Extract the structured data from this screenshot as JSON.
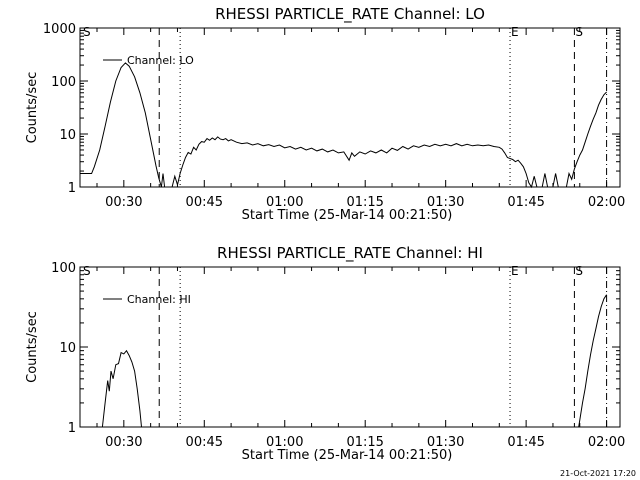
{
  "chart_data": [
    {
      "type": "line",
      "title": "RHESSI PARTICLE_RATE Channel: LO",
      "xlabel": "Start Time (25-Mar-14 00:21:50)",
      "ylabel": "Counts/sec",
      "yscale": "log",
      "ylim": [
        1,
        1000
      ],
      "xlim_minutes": [
        21.83,
        122.5
      ],
      "x_ticks": [
        {
          "t": 30,
          "label": "00:30"
        },
        {
          "t": 45,
          "label": "00:45"
        },
        {
          "t": 60,
          "label": "01:00"
        },
        {
          "t": 75,
          "label": "01:15"
        },
        {
          "t": 90,
          "label": "01:30"
        },
        {
          "t": 105,
          "label": "01:45"
        },
        {
          "t": 120,
          "label": "02:00"
        }
      ],
      "y_ticks": [
        {
          "v": 1,
          "label": "1"
        },
        {
          "v": 10,
          "label": "10"
        },
        {
          "v": 100,
          "label": "100"
        },
        {
          "v": 1000,
          "label": "1000"
        }
      ],
      "legend": {
        "label": "Channel: LO",
        "placement": "top-left"
      },
      "markers": [
        {
          "t": 22.2,
          "label": "S",
          "style": "none"
        },
        {
          "t": 36.6,
          "label": "",
          "style": "dashed"
        },
        {
          "t": 40.5,
          "label": "",
          "style": "dotted"
        },
        {
          "t": 102.0,
          "label": "E",
          "style": "dotted"
        },
        {
          "t": 114.0,
          "label": "S",
          "style": "dashed"
        },
        {
          "t": 120.0,
          "label": "",
          "style": "dashdot"
        }
      ],
      "series": [
        {
          "name": "Channel: LO",
          "points": [
            [
              21.8,
              1.8
            ],
            [
              24.0,
              1.8
            ],
            [
              24.5,
              2.4
            ],
            [
              25.5,
              5.0
            ],
            [
              26.5,
              14
            ],
            [
              27.5,
              40
            ],
            [
              28.5,
              100
            ],
            [
              29.5,
              180
            ],
            [
              30.3,
              220
            ],
            [
              31.0,
              190
            ],
            [
              32.0,
              120
            ],
            [
              33.0,
              60
            ],
            [
              34.0,
              25
            ],
            [
              35.0,
              8
            ],
            [
              36.0,
              2.5
            ],
            [
              36.5,
              1.5
            ],
            [
              37.0,
              1.0
            ],
            [
              37.3,
              1.8
            ],
            [
              37.6,
              1.0
            ],
            [
              38.0,
              1.0
            ],
            [
              39.0,
              1.0
            ],
            [
              39.5,
              1.6
            ],
            [
              40.0,
              1.1
            ],
            [
              40.5,
              1.8
            ],
            [
              41.0,
              2.6
            ],
            [
              41.5,
              3.6
            ],
            [
              42.0,
              4.5
            ],
            [
              42.5,
              4.2
            ],
            [
              43.0,
              5.6
            ],
            [
              43.5,
              5.0
            ],
            [
              44.0,
              6.4
            ],
            [
              44.5,
              7.2
            ],
            [
              45.0,
              7.0
            ],
            [
              45.5,
              8.2
            ],
            [
              46.0,
              7.6
            ],
            [
              46.5,
              8.4
            ],
            [
              47.0,
              7.8
            ],
            [
              47.5,
              8.8
            ],
            [
              48.0,
              8.0
            ],
            [
              48.5,
              7.8
            ],
            [
              49.0,
              8.2
            ],
            [
              49.5,
              7.4
            ],
            [
              50.0,
              7.8
            ],
            [
              51.0,
              7.0
            ],
            [
              52.0,
              6.6
            ],
            [
              53.0,
              6.8
            ],
            [
              54.0,
              6.2
            ],
            [
              55.0,
              6.6
            ],
            [
              56.0,
              6.0
            ],
            [
              57.0,
              6.3
            ],
            [
              58.0,
              5.8
            ],
            [
              59.0,
              6.2
            ],
            [
              60.0,
              5.5
            ],
            [
              61.0,
              5.8
            ],
            [
              62.0,
              5.2
            ],
            [
              63.0,
              5.6
            ],
            [
              64.0,
              5.0
            ],
            [
              65.0,
              5.4
            ],
            [
              66.0,
              4.8
            ],
            [
              67.0,
              5.2
            ],
            [
              68.0,
              4.6
            ],
            [
              69.0,
              5.0
            ],
            [
              70.0,
              4.4
            ],
            [
              71.0,
              4.6
            ],
            [
              72.0,
              3.2
            ],
            [
              72.5,
              4.4
            ],
            [
              73.0,
              3.8
            ],
            [
              74.0,
              4.6
            ],
            [
              75.0,
              4.2
            ],
            [
              76.0,
              4.8
            ],
            [
              77.0,
              4.4
            ],
            [
              78.0,
              5.0
            ],
            [
              79.0,
              4.4
            ],
            [
              80.0,
              5.4
            ],
            [
              81.0,
              4.9
            ],
            [
              82.0,
              5.8
            ],
            [
              83.0,
              5.2
            ],
            [
              84.0,
              6.0
            ],
            [
              85.0,
              5.6
            ],
            [
              86.0,
              6.2
            ],
            [
              87.0,
              5.8
            ],
            [
              88.0,
              6.4
            ],
            [
              89.0,
              6.0
            ],
            [
              90.0,
              6.4
            ],
            [
              91.0,
              6.0
            ],
            [
              92.0,
              6.6
            ],
            [
              93.0,
              6.0
            ],
            [
              94.0,
              6.4
            ],
            [
              95.0,
              6.0
            ],
            [
              96.0,
              6.2
            ],
            [
              97.0,
              6.0
            ],
            [
              98.0,
              6.2
            ],
            [
              99.0,
              5.8
            ],
            [
              100.0,
              5.6
            ],
            [
              100.5,
              5.2
            ],
            [
              101.0,
              4.4
            ],
            [
              101.5,
              3.6
            ],
            [
              102.5,
              3.3
            ],
            [
              103.0,
              3.0
            ],
            [
              103.5,
              3.2
            ],
            [
              104.0,
              2.8
            ],
            [
              104.5,
              2.4
            ],
            [
              105.0,
              1.8
            ],
            [
              105.5,
              1.2
            ],
            [
              106.0,
              1.0
            ],
            [
              106.5,
              1.6
            ],
            [
              107.0,
              1.0
            ],
            [
              108.0,
              1.0
            ],
            [
              108.5,
              1.8
            ],
            [
              109.0,
              1.0
            ],
            [
              110.0,
              1.0
            ],
            [
              110.5,
              1.8
            ],
            [
              111.0,
              1.0
            ],
            [
              112.5,
              1.0
            ],
            [
              113.0,
              1.8
            ],
            [
              113.5,
              1.4
            ],
            [
              114.0,
              2.2
            ],
            [
              114.5,
              3.0
            ],
            [
              115.0,
              4.0
            ],
            [
              115.5,
              5.0
            ],
            [
              116.0,
              7.0
            ],
            [
              116.5,
              10
            ],
            [
              117.0,
              14
            ],
            [
              117.5,
              19
            ],
            [
              118.0,
              25
            ],
            [
              118.5,
              35
            ],
            [
              119.0,
              45
            ],
            [
              119.5,
              55
            ],
            [
              120.0,
              62
            ]
          ]
        }
      ]
    },
    {
      "type": "line",
      "title": "RHESSI PARTICLE_RATE Channel: HI",
      "xlabel": "Start Time (25-Mar-14 00:21:50)",
      "ylabel": "Counts/sec",
      "yscale": "log",
      "ylim": [
        1,
        100
      ],
      "xlim_minutes": [
        21.83,
        122.5
      ],
      "x_ticks": [
        {
          "t": 30,
          "label": "00:30"
        },
        {
          "t": 45,
          "label": "00:45"
        },
        {
          "t": 60,
          "label": "01:00"
        },
        {
          "t": 75,
          "label": "01:15"
        },
        {
          "t": 90,
          "label": "01:30"
        },
        {
          "t": 105,
          "label": "01:45"
        },
        {
          "t": 120,
          "label": "02:00"
        }
      ],
      "y_ticks": [
        {
          "v": 1,
          "label": "1"
        },
        {
          "v": 10,
          "label": "10"
        },
        {
          "v": 100,
          "label": "100"
        }
      ],
      "legend": {
        "label": "Channel: HI",
        "placement": "top-left"
      },
      "markers": [
        {
          "t": 22.2,
          "label": "S",
          "style": "none"
        },
        {
          "t": 36.6,
          "label": "",
          "style": "dashed"
        },
        {
          "t": 40.5,
          "label": "",
          "style": "dotted"
        },
        {
          "t": 102.0,
          "label": "E",
          "style": "dotted"
        },
        {
          "t": 114.0,
          "label": "S",
          "style": "dashed"
        },
        {
          "t": 120.0,
          "label": "",
          "style": "dashdot"
        }
      ],
      "series": [
        {
          "name": "Channel: HI",
          "points": [
            [
              26.0,
              1.0
            ],
            [
              26.5,
              2.0
            ],
            [
              27.0,
              3.8
            ],
            [
              27.3,
              2.8
            ],
            [
              27.6,
              5.0
            ],
            [
              28.0,
              4.0
            ],
            [
              28.5,
              6.0
            ],
            [
              29.0,
              6.2
            ],
            [
              29.5,
              8.5
            ],
            [
              30.0,
              8.2
            ],
            [
              30.5,
              9.0
            ],
            [
              31.0,
              7.8
            ],
            [
              31.5,
              6.5
            ],
            [
              32.0,
              5.0
            ],
            [
              32.5,
              3.0
            ],
            [
              33.0,
              1.6
            ],
            [
              33.3,
              1.0
            ]
          ]
        },
        {
          "name": "",
          "points": [
            [
              114.8,
              1.0
            ],
            [
              115.5,
              2.0
            ],
            [
              116.0,
              3.0
            ],
            [
              116.5,
              5.0
            ],
            [
              117.0,
              8.0
            ],
            [
              117.5,
              12
            ],
            [
              118.0,
              17
            ],
            [
              118.5,
              24
            ],
            [
              119.0,
              32
            ],
            [
              119.5,
              40
            ],
            [
              120.0,
              45
            ]
          ]
        }
      ]
    }
  ],
  "footer": {
    "timestamp": "21-Oct-2021 17:20"
  }
}
